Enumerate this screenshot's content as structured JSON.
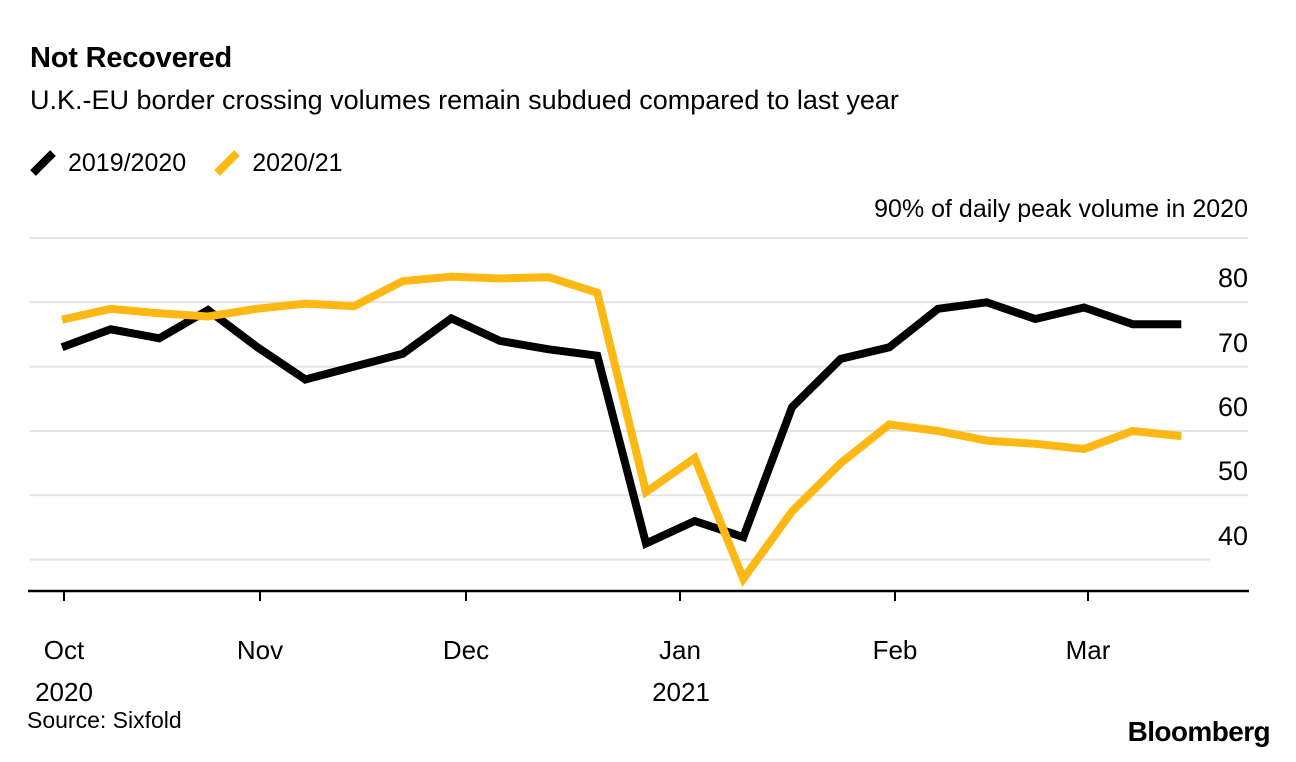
{
  "header": {
    "title": "Not Recovered",
    "subtitle": "U.K.-EU border crossing volumes remain subdued compared to last year"
  },
  "legend": [
    {
      "label": "2019/2020",
      "color": "#000000"
    },
    {
      "label": "2020/21",
      "color": "#FDB813"
    }
  ],
  "footer": {
    "source": "Source: Sixfold",
    "brand": "Bloomberg"
  },
  "chart_data": {
    "type": "line",
    "title": "Not Recovered",
    "subtitle": "U.K.-EU border crossing volumes remain subdued compared to last year",
    "unit_label": "90% of daily peak volume in 2020",
    "ylabel": "% of daily peak volume in 2020",
    "ylim": [
      35,
      90
    ],
    "grid": "horizontal",
    "legend_position": "top-left",
    "gridline_values": [
      90,
      80,
      70,
      60,
      50,
      40
    ],
    "y_tick_labels": [
      80,
      70,
      60,
      50,
      40
    ],
    "x_tick_labels": [
      "Oct",
      "Nov",
      "Dec",
      "Jan",
      "Feb",
      "Mar"
    ],
    "x_tick_sublabels": [
      "2020",
      "",
      "",
      "2021",
      "",
      ""
    ],
    "x": [
      "Oct 1",
      "Oct 8",
      "Oct 15",
      "Oct 22",
      "Oct 29",
      "Nov 5",
      "Nov 12",
      "Nov 19",
      "Nov 26",
      "Dec 3",
      "Dec 10",
      "Dec 17",
      "Dec 24",
      "Dec 31",
      "Jan 7",
      "Jan 14",
      "Jan 21",
      "Jan 28",
      "Feb 4",
      "Feb 11",
      "Feb 18",
      "Feb 25",
      "Mar 4",
      "Mar 11"
    ],
    "series": [
      {
        "name": "2019/2020",
        "color": "#000000",
        "values": [
          73,
          75.8,
          74.4,
          78.8,
          73.1,
          68,
          70,
          72,
          77.5,
          74,
          72.7,
          71.7,
          42.5,
          46,
          43.5,
          63.7,
          71.2,
          73,
          79,
          80,
          77.4,
          79.2,
          76.6,
          76.6
        ]
      },
      {
        "name": "2020/21",
        "color": "#FDB813",
        "values": [
          77.3,
          79,
          78.3,
          77.8,
          79,
          79.8,
          79.4,
          83.3,
          84,
          83.7,
          83.9,
          81.5,
          50.5,
          55.8,
          37,
          47.5,
          55,
          61,
          60,
          58.5,
          58,
          57.2,
          60,
          59.2
        ]
      }
    ],
    "source": "Source: Sixfold"
  }
}
